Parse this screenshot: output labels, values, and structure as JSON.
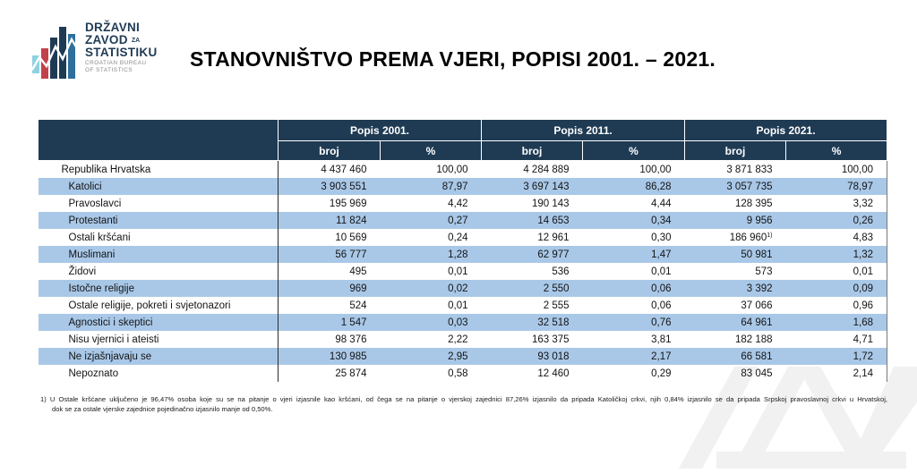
{
  "logo": {
    "name_line1": "DRŽAVNI",
    "name_line2": "ZAVOD",
    "name_line2_suffix": "ZA",
    "name_line3": "STATISTIKU",
    "subtitle_line1": "CROATIAN BUREAU",
    "subtitle_line2": "OF STATISTICS"
  },
  "title": "STANOVNIŠTVO PREMA VJERI, POPISI 2001. – 2021.",
  "table": {
    "column_groups": [
      {
        "label": "Popis 2001."
      },
      {
        "label": "Popis 2011."
      },
      {
        "label": "Popis 2021."
      }
    ],
    "sub_headers": {
      "count": "broj",
      "percent": "%"
    },
    "rows": [
      {
        "label": "Republika Hrvatska",
        "indent": false,
        "highlight": false,
        "values": [
          "4 437 460",
          "100,00",
          "4 284 889",
          "100,00",
          "3 871 833",
          "100,00"
        ]
      },
      {
        "label": "Katolici",
        "indent": true,
        "highlight": true,
        "values": [
          "3 903 551",
          "87,97",
          "3 697 143",
          "86,28",
          "3 057 735",
          "78,97"
        ]
      },
      {
        "label": "Pravoslavci",
        "indent": true,
        "highlight": false,
        "values": [
          "195 969",
          "4,42",
          "190 143",
          "4,44",
          "128 395",
          "3,32"
        ]
      },
      {
        "label": "Protestanti",
        "indent": true,
        "highlight": true,
        "values": [
          "11 824",
          "0,27",
          "14 653",
          "0,34",
          "9 956",
          "0,26"
        ]
      },
      {
        "label": "Ostali kršćani",
        "indent": true,
        "highlight": false,
        "values": [
          "10 569",
          "0,24",
          "12 961",
          "0,30",
          "186 960",
          "4,83"
        ],
        "marker": {
          "value_index": 4,
          "text": "1)"
        }
      },
      {
        "label": "Muslimani",
        "indent": true,
        "highlight": true,
        "values": [
          "56 777",
          "1,28",
          "62 977",
          "1,47",
          "50 981",
          "1,32"
        ]
      },
      {
        "label": "Židovi",
        "indent": true,
        "highlight": false,
        "values": [
          "495",
          "0,01",
          "536",
          "0,01",
          "573",
          "0,01"
        ]
      },
      {
        "label": "Istočne religije",
        "indent": true,
        "highlight": true,
        "values": [
          "969",
          "0,02",
          "2 550",
          "0,06",
          "3 392",
          "0,09"
        ]
      },
      {
        "label": "Ostale religije, pokreti i svjetonazori",
        "indent": true,
        "highlight": false,
        "values": [
          "524",
          "0,01",
          "2 555",
          "0,06",
          "37 066",
          "0,96"
        ]
      },
      {
        "label": "Agnostici i skeptici",
        "indent": true,
        "highlight": true,
        "values": [
          "1 547",
          "0,03",
          "32 518",
          "0,76",
          "64 961",
          "1,68"
        ]
      },
      {
        "label": "Nisu vjernici i ateisti",
        "indent": true,
        "highlight": false,
        "values": [
          "98 376",
          "2,22",
          "163 375",
          "3,81",
          "182 188",
          "4,71"
        ]
      },
      {
        "label": "Ne izjašnjavaju se",
        "indent": true,
        "highlight": true,
        "values": [
          "130 985",
          "2,95",
          "93 018",
          "2,17",
          "66 581",
          "1,72"
        ]
      },
      {
        "label": "Nepoznato",
        "indent": true,
        "highlight": false,
        "values": [
          "25 874",
          "0,58",
          "12 460",
          "0,29",
          "83 045",
          "2,14"
        ]
      }
    ]
  },
  "footnote": {
    "line1": "1) U Ostale kršćane uključeno je 96,47% osoba koje su se na pitanje o vjeri izjasnile kao kršćani, od čega se na pitanje o vjerskoj zajednici 87,26% izjasnilo da pripada Katoličkoj crkvi, njih 0,84% izjasnilo se da pripada Srpskoj pravoslavnoj crkvi u Hrvatskoj,",
    "line2": "dok se za ostale vjerske zajednice pojedinačno izjasnilo manje od 0,50%."
  },
  "colors": {
    "header_navy": "#1f3b54",
    "highlight_blue": "#a9c8e8",
    "logo_red": "#c2414b",
    "logo_cyan": "#8fd1de",
    "logo_blue": "#2e6f9c",
    "watermark_grey": "#f1f1f1"
  }
}
